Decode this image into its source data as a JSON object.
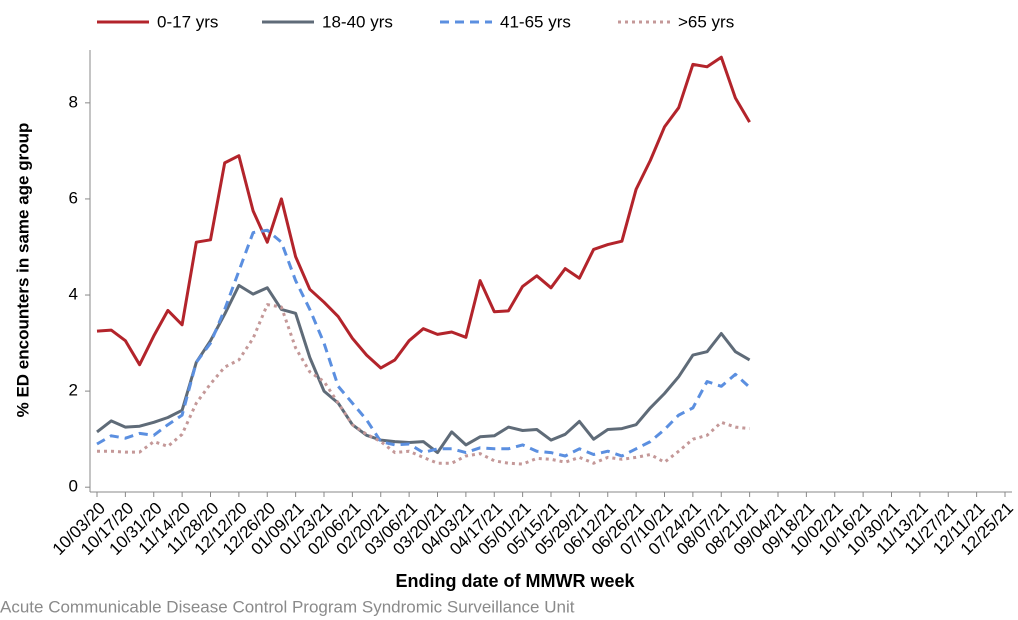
{
  "chart_data": {
    "type": "line",
    "y_label": "% ED encounters in same age group",
    "x_label": "Ending date of MMWR week",
    "source": "Acute Communicable Disease Control Program Syndromic Surveillance Unit",
    "categories": [
      "10/03/20",
      null,
      "10/17/20",
      null,
      "10/31/20",
      null,
      "11/14/20",
      null,
      "11/28/20",
      null,
      "12/12/20",
      null,
      "12/26/20",
      null,
      "01/09/21",
      null,
      "01/23/21",
      null,
      "02/06/21",
      null,
      "02/20/21",
      null,
      "03/06/21",
      null,
      "03/20/21",
      null,
      "04/03/21",
      null,
      "04/17/21",
      null,
      "05/01/21",
      null,
      "05/15/21",
      null,
      "05/29/21",
      null,
      "06/12/21",
      null,
      "06/26/21",
      null,
      "07/10/21",
      null,
      "07/24/21",
      null,
      "08/07/21",
      null,
      "08/21/21",
      null,
      "09/04/21",
      null,
      "09/18/21",
      null,
      "10/02/21",
      null,
      "10/16/21",
      null,
      "10/30/21",
      null,
      "11/13/21",
      null,
      "11/27/21",
      null,
      "12/11/21",
      null,
      "12/25/21"
    ],
    "series": [
      {
        "name": "0-17 yrs",
        "color": "#b3242b",
        "dash": "solid",
        "values": [
          3.25,
          3.27,
          3.05,
          2.55,
          3.15,
          3.68,
          3.38,
          5.1,
          5.15,
          6.75,
          6.9,
          5.75,
          5.1,
          6.0,
          4.8,
          4.12,
          3.85,
          3.55,
          3.1,
          2.75,
          2.48,
          2.65,
          3.05,
          3.3,
          3.18,
          3.23,
          3.12,
          4.3,
          3.65,
          3.67,
          4.18,
          4.4,
          4.15,
          4.55,
          4.35,
          4.95,
          5.05,
          5.12,
          6.2,
          6.8,
          7.5,
          7.9,
          8.8,
          8.75,
          8.95,
          8.1,
          7.6,
          null,
          null,
          null,
          null,
          null,
          null,
          null,
          null,
          null,
          null,
          null,
          null,
          null,
          null,
          null,
          null,
          null,
          null
        ]
      },
      {
        "name": "18-40 yrs",
        "color": "#5f6b78",
        "dash": "solid",
        "values": [
          1.15,
          1.38,
          1.25,
          1.27,
          1.35,
          1.45,
          1.6,
          2.6,
          3.05,
          3.6,
          4.2,
          4.02,
          4.15,
          3.7,
          3.62,
          2.7,
          2.0,
          1.75,
          1.3,
          1.08,
          0.98,
          0.95,
          0.93,
          0.95,
          0.72,
          1.15,
          0.88,
          1.05,
          1.07,
          1.25,
          1.18,
          1.2,
          0.98,
          1.1,
          1.37,
          1.0,
          1.2,
          1.22,
          1.3,
          1.65,
          1.95,
          2.3,
          2.75,
          2.82,
          3.2,
          2.82,
          2.65,
          null,
          null,
          null,
          null,
          null,
          null,
          null,
          null,
          null,
          null,
          null,
          null,
          null,
          null,
          null,
          null,
          null,
          null
        ]
      },
      {
        "name": "41-65 yrs",
        "color": "#5b8fe0",
        "dash": "dashed",
        "values": [
          0.9,
          1.07,
          1.02,
          1.12,
          1.08,
          1.3,
          1.5,
          2.6,
          3.0,
          3.7,
          4.5,
          5.3,
          5.35,
          5.1,
          4.3,
          3.7,
          3.0,
          2.1,
          1.75,
          1.4,
          0.95,
          0.88,
          0.9,
          0.72,
          0.8,
          0.8,
          0.72,
          0.82,
          0.8,
          0.8,
          0.88,
          0.75,
          0.72,
          0.65,
          0.8,
          0.68,
          0.75,
          0.65,
          0.8,
          0.95,
          1.2,
          1.5,
          1.65,
          2.2,
          2.1,
          2.35,
          2.08,
          null,
          null,
          null,
          null,
          null,
          null,
          null,
          null,
          null,
          null,
          null,
          null,
          null,
          null,
          null,
          null,
          null,
          null
        ]
      },
      {
        "name": ">65 yrs",
        "color": "#c49898",
        "dash": "dotted",
        "values": [
          0.75,
          0.75,
          0.73,
          0.73,
          0.95,
          0.85,
          1.1,
          1.75,
          2.15,
          2.5,
          2.65,
          3.1,
          3.8,
          3.75,
          2.9,
          2.4,
          2.2,
          1.75,
          1.3,
          1.1,
          0.95,
          0.72,
          0.75,
          0.62,
          0.5,
          0.5,
          0.65,
          0.7,
          0.55,
          0.5,
          0.48,
          0.6,
          0.58,
          0.52,
          0.62,
          0.5,
          0.62,
          0.58,
          0.62,
          0.68,
          0.52,
          0.75,
          1.0,
          1.08,
          1.35,
          1.25,
          1.22,
          null,
          null,
          null,
          null,
          null,
          null,
          null,
          null,
          null,
          null,
          null,
          null,
          null,
          null,
          null,
          null,
          null,
          null
        ]
      }
    ],
    "ylim": [
      -0.1,
      9.1
    ],
    "yticks": [
      0,
      2,
      4,
      6,
      8
    ],
    "grid": false,
    "legend": "top"
  }
}
